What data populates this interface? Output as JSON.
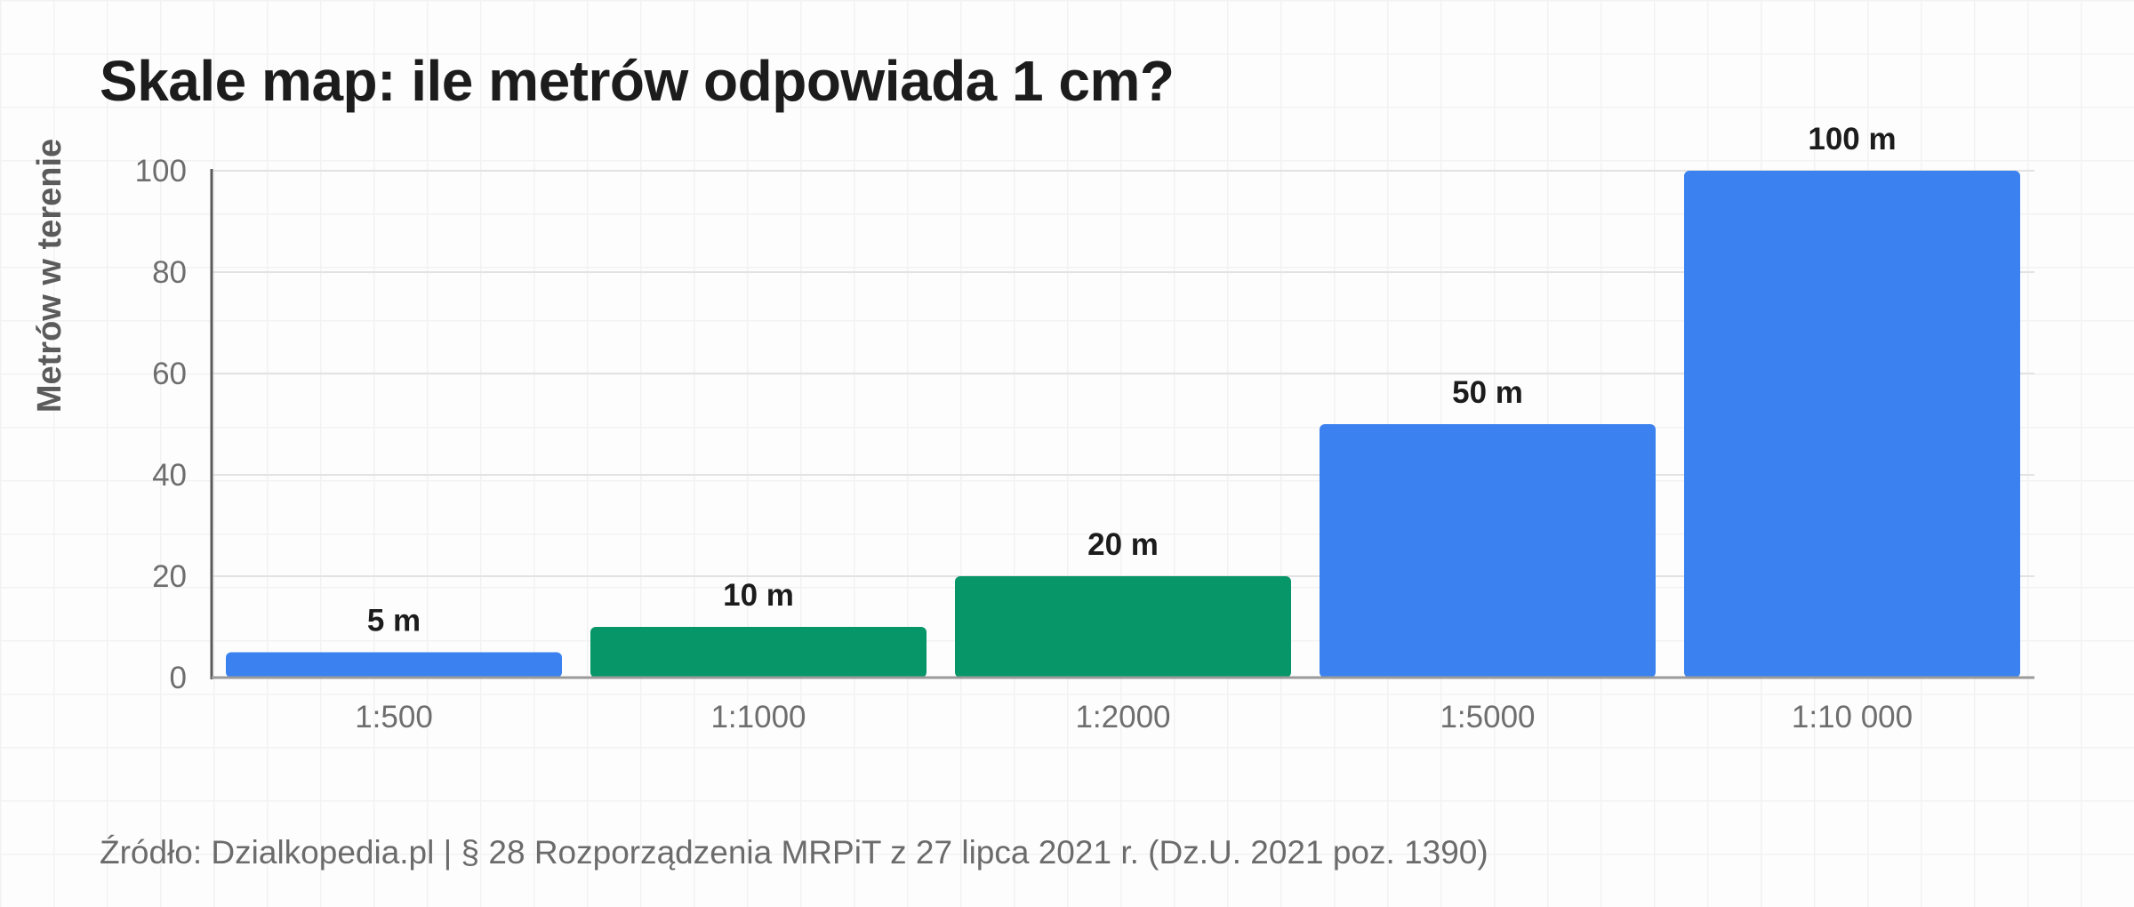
{
  "chart_data": {
    "type": "bar",
    "title": "Skale map: ile metrów odpowiada 1 cm?",
    "xlabel": "",
    "ylabel": "Metrów w terenie",
    "categories": [
      "1:500",
      "1:1000",
      "1:2000",
      "1:5000",
      "1:10 000"
    ],
    "values": [
      5,
      10,
      20,
      50,
      100
    ],
    "data_labels": [
      "5 m",
      "10 m",
      "20 m",
      "50 m",
      "100 m"
    ],
    "bar_colors": [
      "#3b82f0",
      "#069668",
      "#069668",
      "#3b82f0",
      "#3b82f0"
    ],
    "ylim": [
      0,
      100
    ],
    "yticks": [
      "0",
      "20",
      "40",
      "60",
      "80",
      "100"
    ],
    "grid": true,
    "legend": "none"
  },
  "footer": {
    "source": "Źródło: Dzialkopedia.pl | § 28 Rozporządzenia MRPiT z 27 lipca 2021 r. (Dz.U. 2021 poz. 1390)"
  }
}
